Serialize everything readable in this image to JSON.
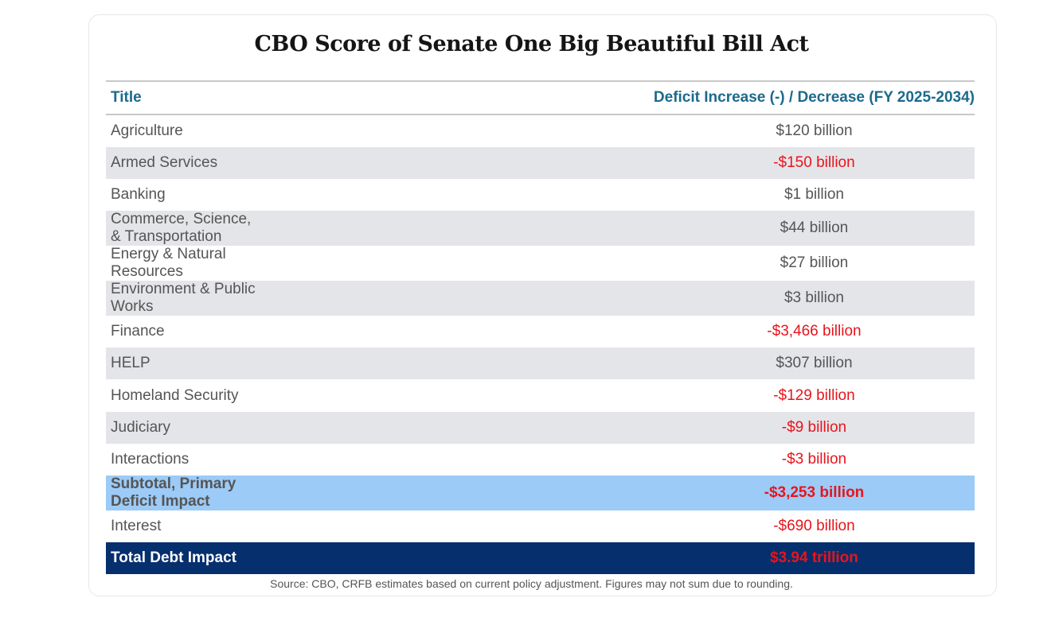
{
  "title": "CBO Score of Senate One Big Beautiful Bill Act",
  "headers": [
    "Title",
    "Deficit Increase (-) / Decrease (FY 2025-2034)"
  ],
  "rows": [
    {
      "title": "Agriculture",
      "value": "$120 billion"
    },
    {
      "title": "Armed Services",
      "value": "-$150 billion"
    },
    {
      "title": "Banking",
      "value": "$1 billion"
    },
    {
      "title": "Commerce, Science, & Transportation",
      "value": "$44 billion"
    },
    {
      "title": "Energy & Natural Resources",
      "value": "$27 billion"
    },
    {
      "title": "Environment & Public Works",
      "value": "$3 billion"
    },
    {
      "title": "Finance",
      "value": "-$3,466 billion"
    },
    {
      "title": "HELP",
      "value": "$307 billion"
    },
    {
      "title": "Homeland Security",
      "value": "-$129 billion"
    },
    {
      "title": "Judiciary",
      "value": "-$9 billion"
    },
    {
      "title": "Interactions",
      "value": "-$3 billion"
    },
    {
      "title": "Subtotal, Primary Deficit Impact",
      "value": "-$3,253 billion"
    },
    {
      "title": "Interest",
      "value": "-$690 billion"
    },
    {
      "title": "Total Debt Impact",
      "value": "$3.94 trillion"
    }
  ],
  "source": "Source: CBO, CRFB estimates based on current policy adjustment. Figures may not sum due to rounding.",
  "colors": {
    "header": "#1c6a8c",
    "negative": "#e8141c",
    "subtotal_bg": "#9ccbf7",
    "total_bg": "#062f6e"
  }
}
